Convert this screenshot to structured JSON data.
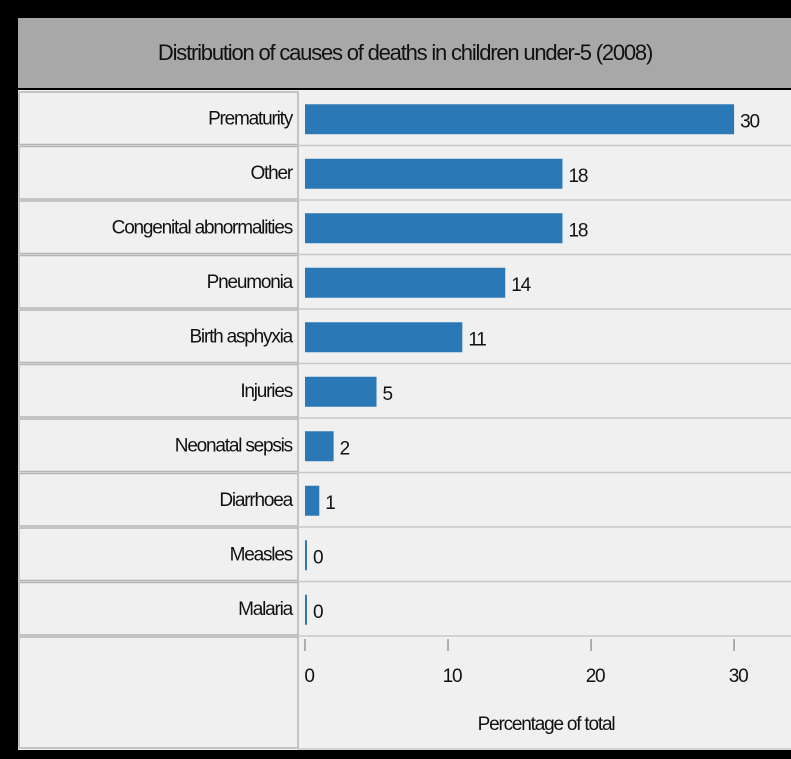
{
  "chart_data": {
    "type": "bar",
    "orientation": "horizontal",
    "title": "Distribution of causes of deaths in children under-5  (2008)",
    "categories": [
      "Prematurity",
      "Other",
      "Congenital abnormalities",
      "Pneumonia",
      "Birth asphyxia",
      "Injuries",
      "Neonatal sepsis",
      "Diarrhoea",
      "Measles",
      "Malaria"
    ],
    "values": [
      30,
      18,
      18,
      14,
      11,
      5,
      2,
      1,
      0,
      0
    ],
    "color": "#2a78b6",
    "xlabel": "Percentage of total",
    "xlim": [
      0,
      33
    ],
    "xticks": [
      0,
      10,
      20,
      30
    ]
  }
}
